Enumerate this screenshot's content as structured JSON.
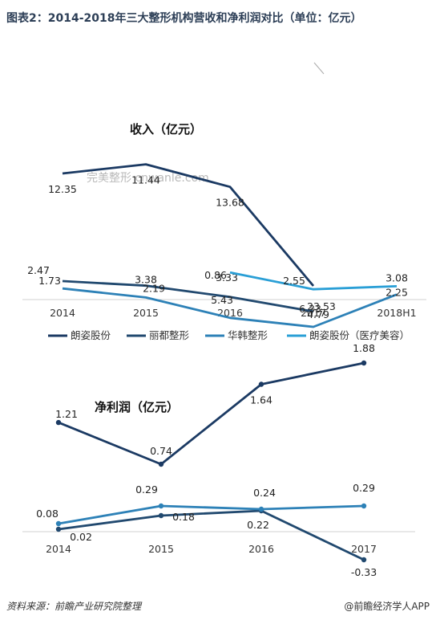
{
  "title": "图表2：2014-2018年三大整形机构营收和净利润对比（单位：亿元）",
  "source": "资料来源：前瞻产业研究院整理",
  "brand": "@前瞻经济学人APP",
  "watermark": "完美整形 cnwanle.com",
  "colors": {
    "langzi": "#1b3a63",
    "lidu": "#21496f",
    "huahan": "#2d81b7",
    "langzi_med": "#2a9fd6",
    "axis": "#d0d0d0"
  },
  "chart_data": [
    {
      "type": "line",
      "annotation": "收入（亿元）",
      "categories": [
        "2014",
        "2015",
        "2016",
        "2017",
        "2018H1"
      ],
      "legend": [
        "朗姿股份",
        "丽都整形",
        "华韩整形",
        "朗姿股份（医疗美容）"
      ],
      "legend_position": "bottom",
      "series": [
        {
          "name": "朗姿股份",
          "color": "#1b3a63",
          "values": [
            12.35,
            11.44,
            13.68,
            23.53,
            null
          ]
        },
        {
          "name": "丽都整形",
          "color": "#21496f",
          "values": [
            1.73,
            2.19,
            3.33,
            4.79,
            null
          ]
        },
        {
          "name": "华韩整形",
          "color": "#2d81b7",
          "values": [
            2.47,
            3.38,
            5.43,
            6.33,
            3.08
          ]
        },
        {
          "name": "朗姿股份（医疗美容）",
          "color": "#2a9fd6",
          "values": [
            null,
            null,
            0.86,
            2.55,
            2.25
          ]
        }
      ],
      "grid": false
    },
    {
      "type": "line",
      "annotation": "净利润（亿元）",
      "categories": [
        "2014",
        "2015",
        "2016",
        "2017"
      ],
      "series": [
        {
          "name": "朗姿股份",
          "color": "#1b3a63",
          "values": [
            1.21,
            0.74,
            1.64,
            1.88
          ]
        },
        {
          "name": "丽都整形",
          "color": "#21496f",
          "values": [
            0.02,
            0.18,
            0.22,
            -0.33
          ]
        },
        {
          "name": "华韩整形",
          "color": "#2d81b7",
          "values": [
            0.08,
            0.29,
            0.24,
            0.29
          ]
        }
      ],
      "grid": false
    }
  ]
}
